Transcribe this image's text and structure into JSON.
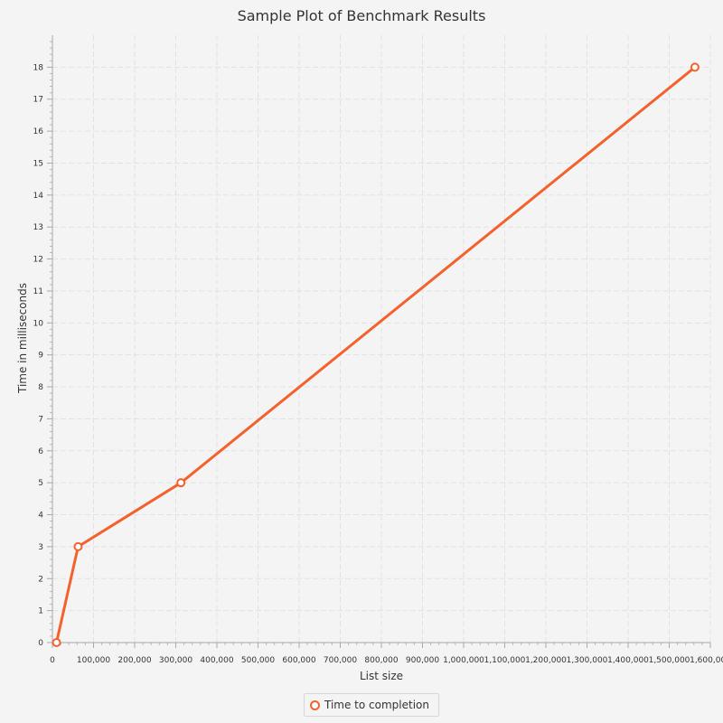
{
  "chart_data": {
    "type": "line",
    "title": "Sample Plot of Benchmark Results",
    "xlabel": "List size",
    "ylabel": "Time in milliseconds",
    "xlim": [
      0,
      1600000
    ],
    "ylim": [
      0,
      19
    ],
    "x_tick_step": 100000,
    "x_minor_step": 20000,
    "y_tick_step": 1,
    "y_ticks_max": 18,
    "y_minor_step": 0.2,
    "grid": true,
    "legend_position": "bottom",
    "series": [
      {
        "name": "Time to completion",
        "color": "#f3622d",
        "x": [
          10000,
          62500,
          312500,
          1562500
        ],
        "y": [
          0,
          3,
          5,
          18
        ]
      }
    ]
  }
}
